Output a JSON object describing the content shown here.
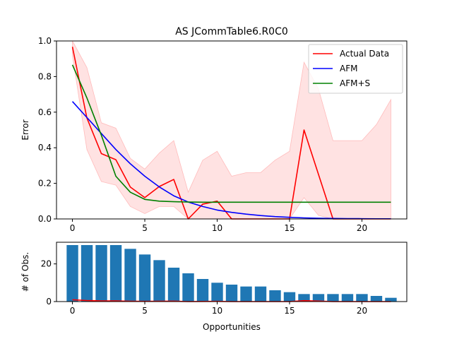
{
  "title": "AS JCommTable6.R0C0",
  "colors": {
    "actual": "#ff0000",
    "afm": "#0000ff",
    "afms": "#008000",
    "band": "#ffdddd",
    "bars": "#1f77b4"
  },
  "chart_data": [
    {
      "type": "line",
      "title": "AS JCommTable6.R0C0",
      "xlabel": "",
      "ylabel": "Error",
      "xlim": [
        -1.1,
        23.1
      ],
      "ylim": [
        0,
        1.0
      ],
      "xticks": [
        0,
        5,
        10,
        15,
        20
      ],
      "yticks": [
        0.0,
        0.2,
        0.4,
        0.6,
        0.8,
        1.0
      ],
      "grid": false,
      "legend": "top-right",
      "x": [
        0,
        1,
        2,
        3,
        4,
        5,
        6,
        7,
        8,
        9,
        10,
        11,
        12,
        13,
        14,
        15,
        16,
        17,
        18,
        19,
        20,
        21,
        22
      ],
      "series": [
        {
          "name": "Actual Data",
          "color": "#ff0000",
          "values": [
            0.967,
            0.567,
            0.367,
            0.333,
            0.179,
            0.12,
            0.182,
            0.222,
            0.0,
            0.083,
            0.1,
            0.0,
            0.0,
            0.0,
            0.0,
            0.0,
            0.5,
            0.25,
            0.0,
            0.0,
            0.0,
            0.0,
            0.0
          ]
        },
        {
          "name": "AFM",
          "color": "#0000ff",
          "values": [
            0.66,
            0.57,
            0.48,
            0.39,
            0.31,
            0.24,
            0.18,
            0.13,
            0.095,
            0.07,
            0.05,
            0.037,
            0.027,
            0.019,
            0.013,
            0.009,
            0.006,
            0.004,
            0.003,
            0.002,
            0.0015,
            0.001,
            0.001
          ]
        },
        {
          "name": "AFM+S",
          "color": "#008000",
          "values": [
            0.866,
            0.68,
            0.47,
            0.24,
            0.15,
            0.11,
            0.1,
            0.097,
            0.095,
            0.094,
            0.094,
            0.094,
            0.094,
            0.094,
            0.094,
            0.094,
            0.094,
            0.094,
            0.094,
            0.094,
            0.094,
            0.094,
            0.094
          ]
        }
      ],
      "band": {
        "upper": [
          1.0,
          0.85,
          0.54,
          0.51,
          0.34,
          0.28,
          0.37,
          0.44,
          0.15,
          0.33,
          0.38,
          0.24,
          0.26,
          0.26,
          0.33,
          0.38,
          0.88,
          0.73,
          0.44,
          0.44,
          0.44,
          0.53,
          0.67
        ],
        "lower": [
          0.92,
          0.39,
          0.21,
          0.19,
          0.07,
          0.03,
          0.07,
          0.07,
          0.0,
          0.0,
          0.0,
          0.0,
          0.0,
          0.0,
          0.0,
          0.0,
          0.12,
          0.02,
          0.0,
          0.0,
          0.0,
          0.0,
          0.0
        ]
      }
    },
    {
      "type": "bar",
      "xlabel": "Opportunities",
      "ylabel": "# of Obs.",
      "xlim": [
        -1.1,
        23.1
      ],
      "ylim": [
        0,
        31.5
      ],
      "xticks": [
        0,
        5,
        10,
        15,
        20
      ],
      "yticks": [
        0,
        20
      ],
      "categories": [
        0,
        1,
        2,
        3,
        4,
        5,
        6,
        7,
        8,
        9,
        10,
        11,
        12,
        13,
        14,
        15,
        16,
        17,
        18,
        19,
        20,
        21,
        22
      ],
      "values": [
        30,
        30,
        30,
        30,
        28,
        25,
        22,
        18,
        15,
        12,
        10,
        9,
        8,
        8,
        6,
        5,
        4,
        4,
        4,
        4,
        4,
        3,
        2
      ],
      "overlay_line": {
        "color": "#ff0000",
        "values": [
          0.967,
          0.567,
          0.367,
          0.333,
          0.179,
          0.12,
          0.182,
          0.222,
          0.0,
          0.083,
          0.1,
          0.0,
          0.0,
          0.0,
          0.0,
          0.0,
          0.5,
          0.25,
          0.0,
          0.0,
          0.0,
          0.0,
          0.0
        ]
      }
    }
  ]
}
